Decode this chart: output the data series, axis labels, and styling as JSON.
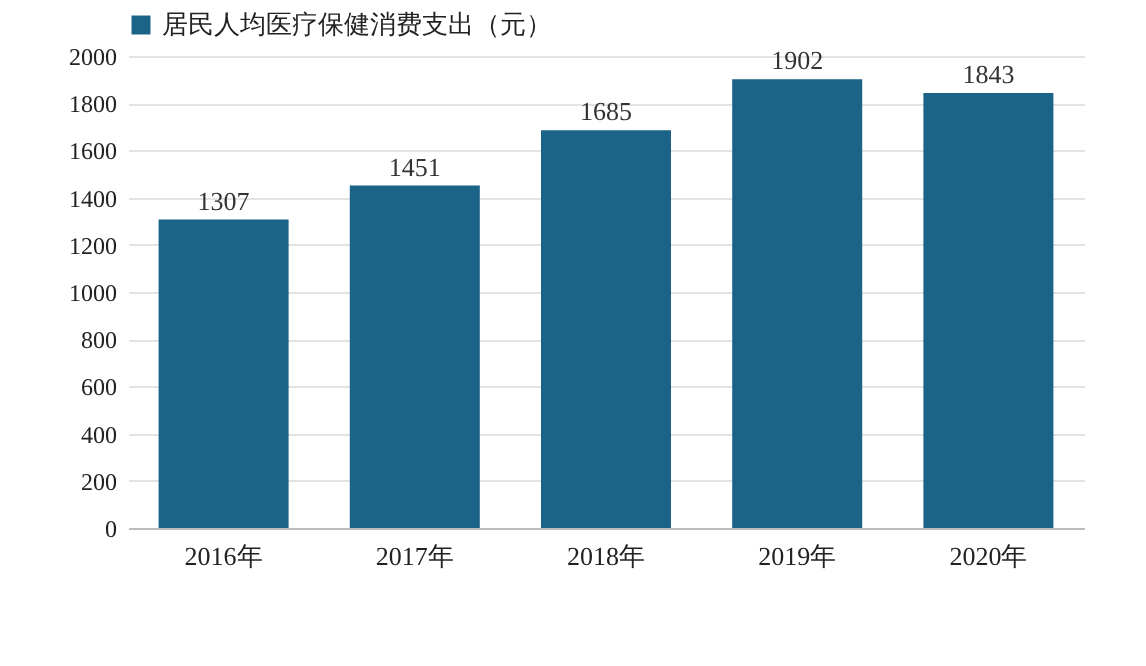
{
  "chart_data": {
    "type": "bar",
    "categories": [
      "2016年",
      "2017年",
      "2018年",
      "2019年",
      "2020年"
    ],
    "series": [
      {
        "name": "居民人均医疗保健消费支出（元）",
        "color": "#1b6387",
        "values": [
          1307,
          1451,
          1685,
          1902,
          1843
        ]
      }
    ],
    "ylim": [
      0,
      2000
    ],
    "yticks": [
      0,
      200,
      400,
      600,
      800,
      1000,
      1200,
      1400,
      1600,
      1800,
      2000
    ],
    "grid": "y",
    "legend": "top",
    "data_labels": true
  }
}
